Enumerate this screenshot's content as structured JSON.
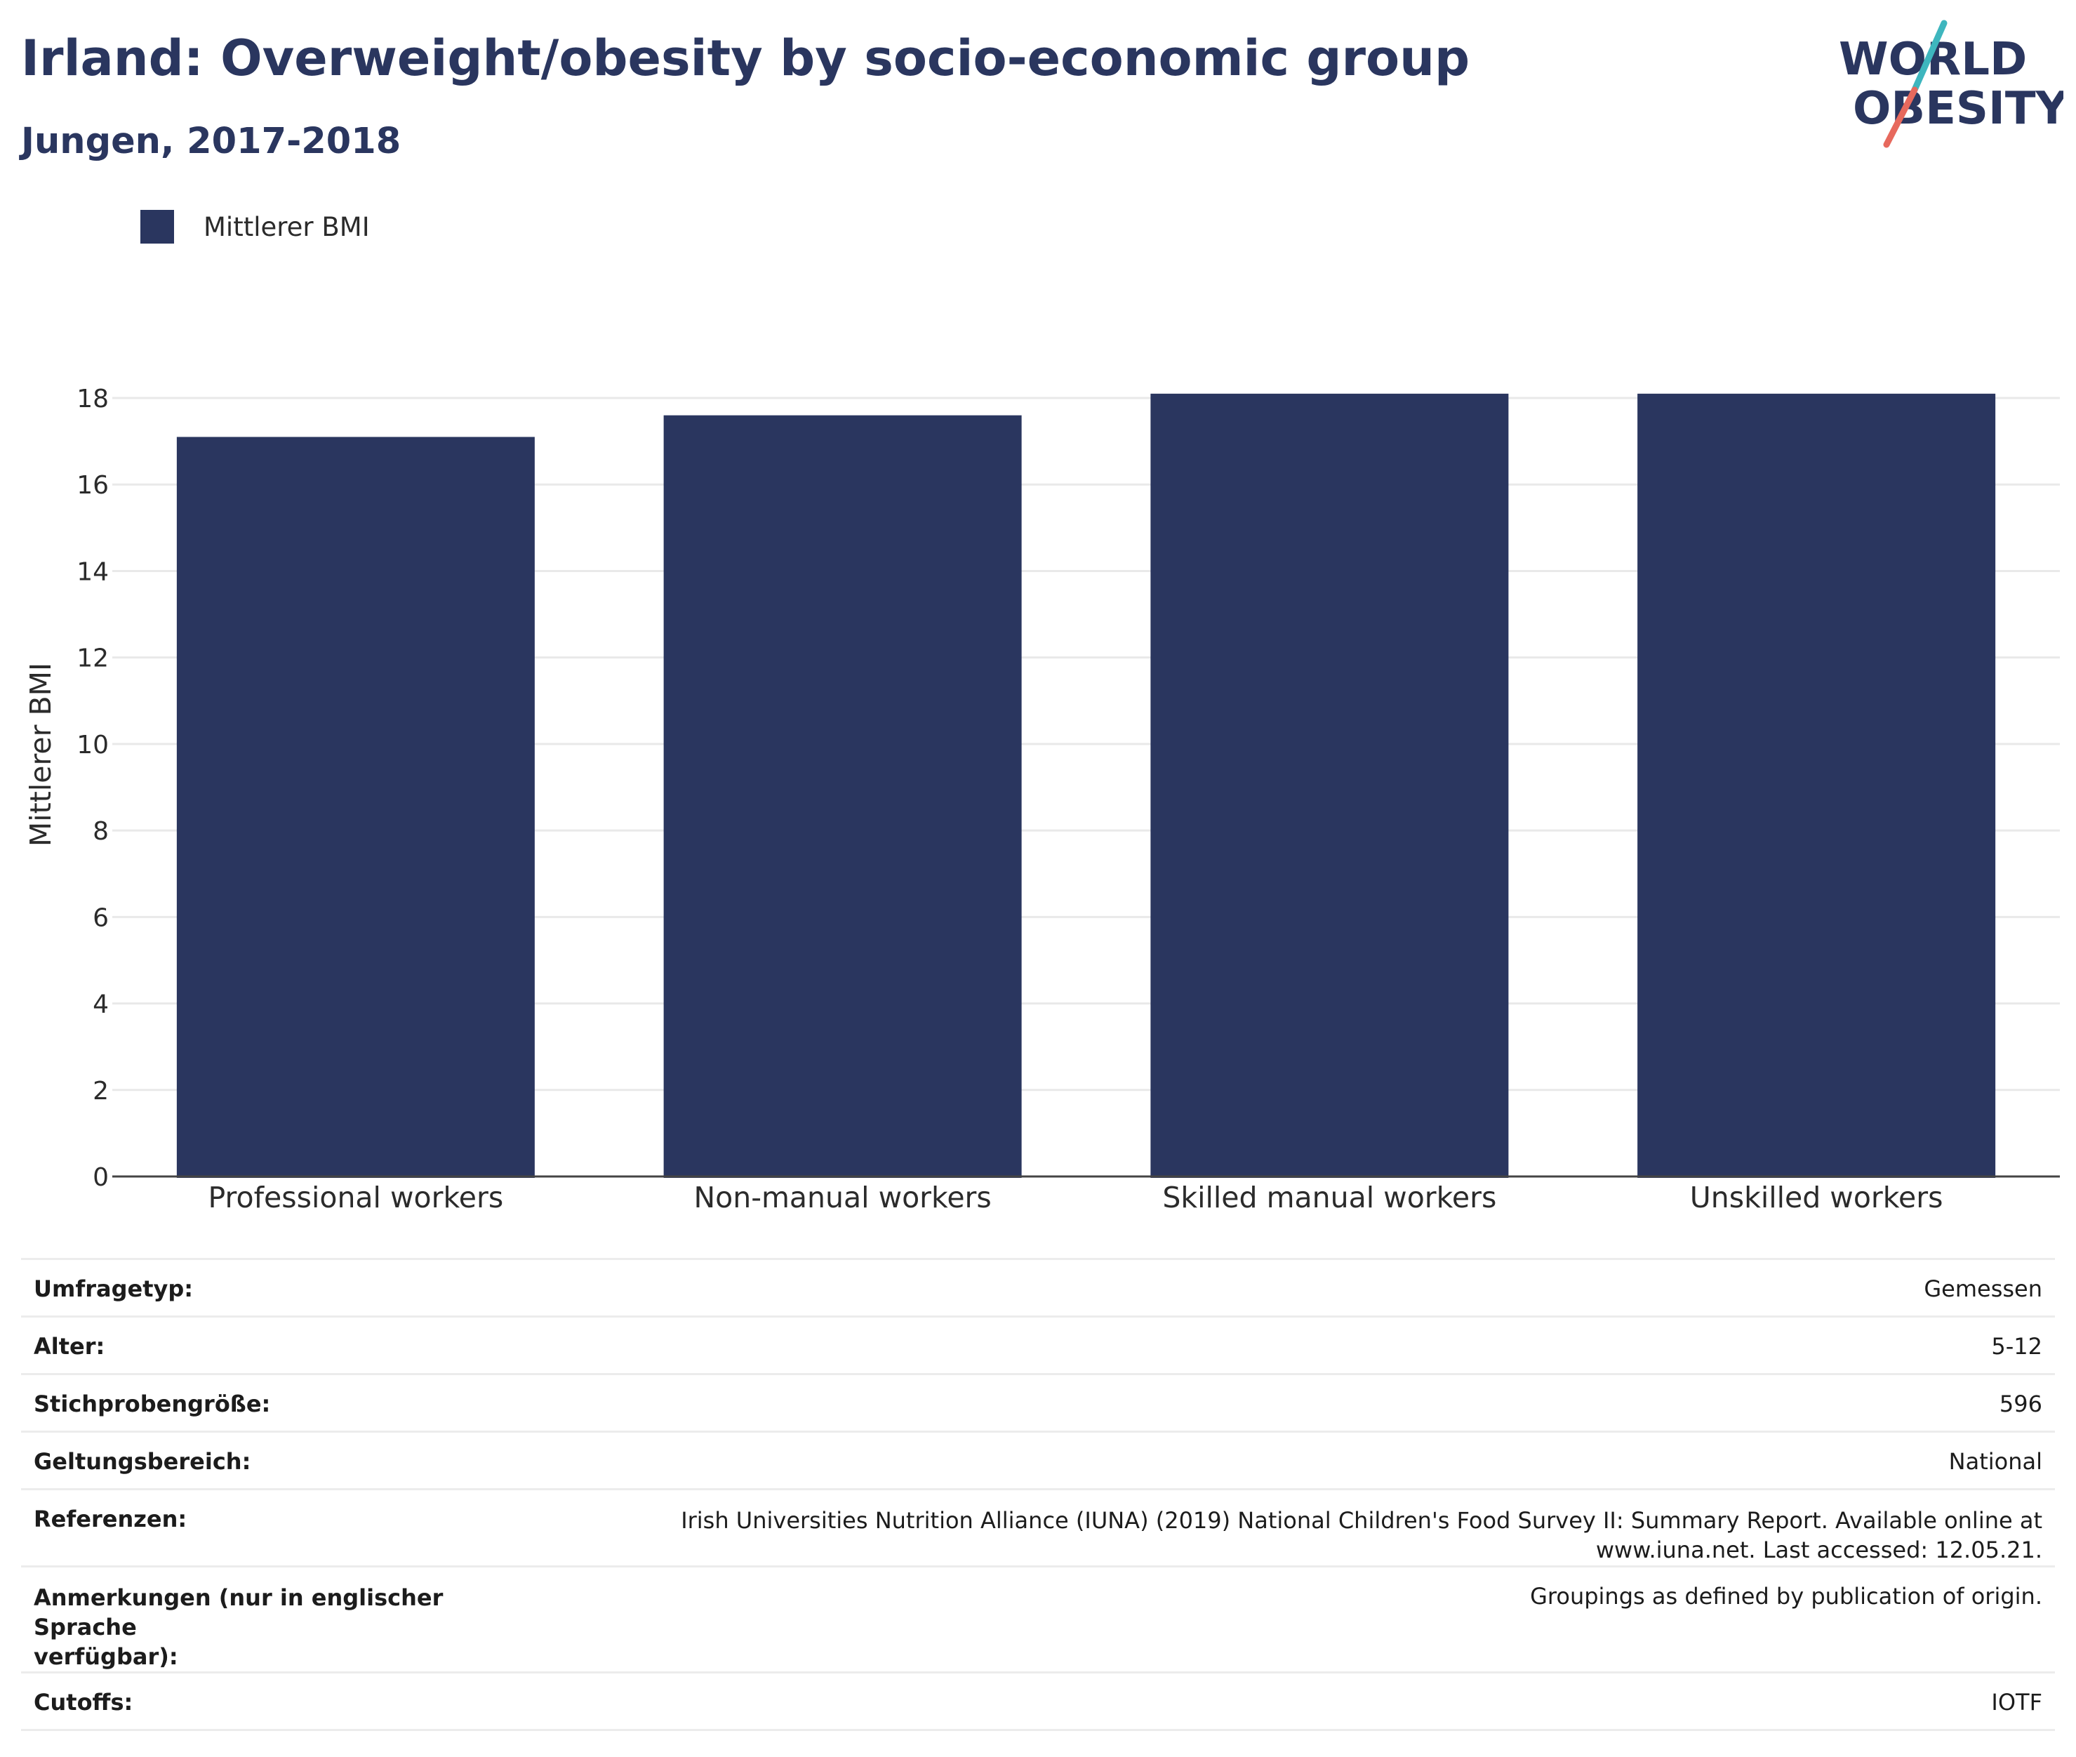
{
  "header": {
    "title": "Irland: Overweight/obesity by socio-economic group",
    "subtitle": "Jungen, 2017-2018"
  },
  "logo": {
    "line1": "WORLD",
    "line2": "OBESITY",
    "text_color": "#2a365f",
    "slash_top_color": "#3eb6be",
    "slash_bottom_color": "#e7695d"
  },
  "legend": {
    "label": "Mittlerer BMI",
    "color": "#2a365f"
  },
  "chart_data": {
    "type": "bar",
    "categories": [
      "Professional workers",
      "Non-manual workers",
      "Skilled manual workers",
      "Unskilled workers"
    ],
    "series": [
      {
        "name": "Mittlerer BMI",
        "values": [
          17.1,
          17.6,
          18.1,
          18.1
        ],
        "color": "#2a365f"
      }
    ],
    "ylabel": "Mittlerer BMI",
    "xlabel": "",
    "ylim": [
      0,
      18.6
    ],
    "yticks": [
      0,
      2,
      4,
      6,
      8,
      10,
      12,
      14,
      16,
      18
    ],
    "grid": true,
    "legend_position": "top-left"
  },
  "info_table": [
    {
      "key": "Umfragetyp:",
      "value": "Gemessen"
    },
    {
      "key": "Alter:",
      "value": "5-12"
    },
    {
      "key": "Stichprobengröße:",
      "value": "596"
    },
    {
      "key": "Geltungsbereich:",
      "value": "National"
    },
    {
      "key": "Referenzen:",
      "value_lines": [
        "Irish Universities Nutrition Alliance (IUNA) (2019) National Children's Food Survey II: Summary Report. Available online at",
        "www.iuna.net. Last accessed: 12.05.21."
      ]
    },
    {
      "key_lines": [
        "Anmerkungen (nur in englischer Sprache",
        "verfügbar):"
      ],
      "value": "Groupings as defined by publication of origin."
    },
    {
      "key": "Cutoffs:",
      "value": "IOTF"
    }
  ]
}
